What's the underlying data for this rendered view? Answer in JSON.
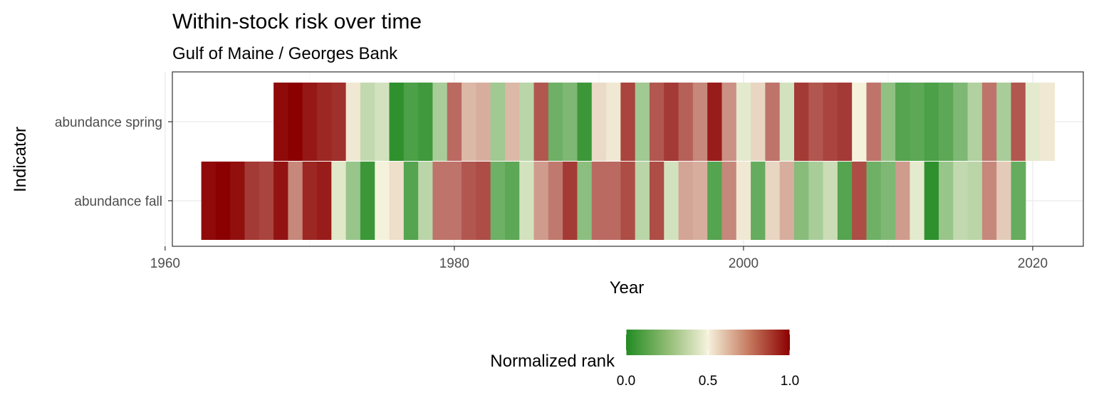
{
  "chart_data": {
    "type": "heatmap",
    "title": "Within-stock risk over time",
    "subtitle": "Gulf of Maine / Georges Bank",
    "xlabel": "Year",
    "ylabel": "Indicator",
    "xlim": [
      1960.5,
      2023.5
    ],
    "x_ticks": [
      1960,
      1980,
      2000,
      2020
    ],
    "grid": true,
    "legend_position": "bottom",
    "legend": {
      "title": "Normalized rank",
      "ticks": [
        0.0,
        0.5,
        1.0
      ],
      "tick_labels": [
        "0.0",
        "0.5",
        "1.0"
      ],
      "colors": {
        "low": "#228b22",
        "mid": "#f5f2dc",
        "high": "#8b0000"
      }
    },
    "series": [
      {
        "name": "abundance spring",
        "start_year": 1968,
        "values": [
          0.98,
          1.0,
          0.95,
          0.92,
          0.9,
          0.52,
          0.38,
          0.42,
          0.03,
          0.1,
          0.07,
          0.32,
          0.78,
          0.62,
          0.64,
          0.3,
          0.62,
          0.36,
          0.82,
          0.18,
          0.22,
          0.06,
          0.55,
          0.52,
          0.86,
          0.3,
          0.82,
          0.88,
          0.8,
          0.72,
          0.94,
          0.7,
          0.46,
          0.56,
          0.76,
          0.42,
          0.88,
          0.82,
          0.86,
          0.88,
          0.5,
          0.76,
          0.26,
          0.12,
          0.14,
          0.1,
          0.14,
          0.22,
          0.34,
          0.76,
          0.32,
          0.82,
          0.46,
          0.52
        ]
      },
      {
        "name": "abundance fall",
        "start_year": 1963,
        "values": [
          0.98,
          1.0,
          0.97,
          0.88,
          0.86,
          0.96,
          0.72,
          0.92,
          0.94,
          0.45,
          0.28,
          0.06,
          0.5,
          0.54,
          0.12,
          0.36,
          0.76,
          0.76,
          0.82,
          0.84,
          0.18,
          0.14,
          0.42,
          0.68,
          0.75,
          0.88,
          0.25,
          0.78,
          0.78,
          0.84,
          0.36,
          0.84,
          0.42,
          0.66,
          0.64,
          0.12,
          0.72,
          0.52,
          0.16,
          0.56,
          0.64,
          0.24,
          0.32,
          0.4,
          0.12,
          0.84,
          0.18,
          0.22,
          0.68,
          0.46,
          0.03,
          0.28,
          0.38,
          0.36,
          0.72,
          0.58,
          0.16
        ]
      }
    ]
  }
}
